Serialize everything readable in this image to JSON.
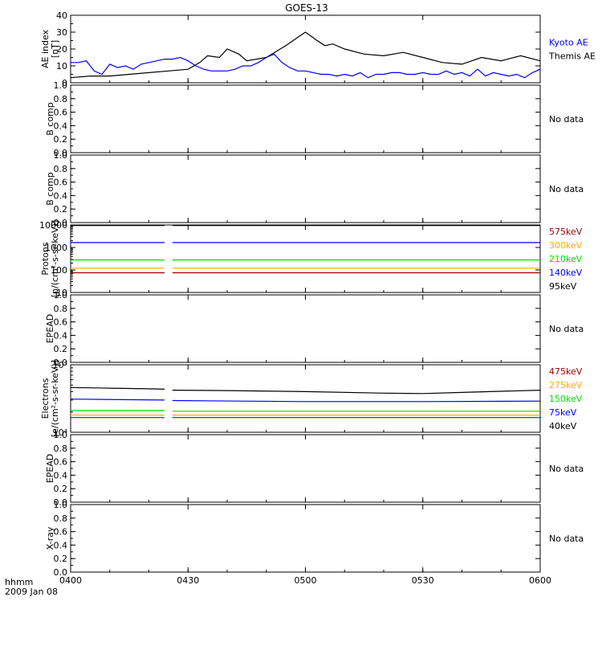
{
  "title": "GOES-13",
  "x_axis": {
    "ticks": [
      "0400",
      "0430",
      "0500",
      "0530",
      "0600"
    ],
    "label_line1": "hhmm",
    "label_line2": "2009 Jan 08"
  },
  "colors": {
    "black": "#000000",
    "blue": "#0000ff",
    "green": "#00dd00",
    "orange": "#ffaa00",
    "darkred": "#990000"
  },
  "chart_data": [
    {
      "id": "ae",
      "type": "line",
      "ylabel_line1": "AE index",
      "ylabel_line2": "[nT]",
      "ylim": [
        0,
        40
      ],
      "scale": "linear",
      "yticks": [
        "0",
        "10",
        "20",
        "30",
        "40"
      ],
      "legend": [
        {
          "label": "Kyoto AE",
          "color": "#0000ff"
        },
        {
          "label": "Themis AE",
          "color": "#000000"
        }
      ],
      "series": [
        {
          "name": "Themis AE",
          "color": "#000000",
          "x": [
            0,
            5,
            10,
            15,
            20,
            25,
            30,
            33,
            35,
            38,
            40,
            43,
            45,
            50,
            55,
            60,
            63,
            65,
            67,
            70,
            75,
            80,
            85,
            90,
            95,
            100,
            105,
            110,
            115,
            120
          ],
          "y": [
            3,
            4,
            4,
            5,
            6,
            7,
            8,
            12,
            16,
            15,
            20,
            17,
            13,
            15,
            22,
            30,
            25,
            22,
            23,
            20,
            17,
            16,
            18,
            15,
            12,
            11,
            15,
            13,
            16,
            13
          ]
        },
        {
          "name": "Kyoto AE",
          "color": "#0000ff",
          "x": [
            0,
            2,
            4,
            6,
            8,
            10,
            12,
            14,
            16,
            18,
            20,
            22,
            24,
            26,
            28,
            30,
            32,
            34,
            36,
            38,
            40,
            42,
            44,
            46,
            48,
            50,
            52,
            54,
            56,
            58,
            60,
            62,
            64,
            66,
            68,
            70,
            72,
            74,
            76,
            78,
            80,
            82,
            84,
            86,
            88,
            90,
            92,
            94,
            96,
            98,
            100,
            102,
            104,
            106,
            108,
            110,
            112,
            114,
            116,
            118,
            120
          ],
          "y": [
            12,
            12,
            13,
            7,
            5,
            11,
            9,
            10,
            8,
            11,
            12,
            13,
            14,
            14,
            15,
            13,
            10,
            8,
            7,
            7,
            7,
            8,
            10,
            10,
            12,
            15,
            17,
            12,
            9,
            7,
            7,
            6,
            5,
            5,
            4,
            5,
            4,
            6,
            3,
            5,
            5,
            6,
            6,
            5,
            5,
            6,
            5,
            5,
            7,
            5,
            6,
            4,
            8,
            4,
            6,
            5,
            4,
            5,
            3,
            6,
            8
          ]
        }
      ]
    },
    {
      "id": "bcomp1",
      "type": "line",
      "ylabel_line1": "B comp",
      "ylim": [
        0,
        1
      ],
      "scale": "linear",
      "yticks": [
        "0.0",
        "0.2",
        "0.4",
        "0.6",
        "0.8",
        "1.0"
      ],
      "no_data": "No data",
      "series": []
    },
    {
      "id": "bcomp2",
      "type": "line",
      "ylabel_line1": "B comp",
      "ylim": [
        0,
        1
      ],
      "scale": "linear",
      "yticks": [
        "0.0",
        "0.2",
        "0.4",
        "0.6",
        "0.8",
        "1.0"
      ],
      "no_data": "No data",
      "series": []
    },
    {
      "id": "protons",
      "type": "line",
      "ylabel_line1": "Protons",
      "ylabel_line2": "[p/(cm²-s-sr-keV)]",
      "ylim": [
        10,
        10000
      ],
      "scale": "log",
      "yticks": [
        "10",
        "100",
        "1000",
        "10000"
      ],
      "ytick_values": [
        10,
        100,
        1000,
        10000
      ],
      "legend": [
        {
          "label": "575keV",
          "color": "#990000"
        },
        {
          "label": "300keV",
          "color": "#ffaa00"
        },
        {
          "label": "210keV",
          "color": "#00dd00"
        },
        {
          "label": "140keV",
          "color": "#0000ff"
        },
        {
          "label": "95keV",
          "color": "#000000"
        }
      ],
      "gap": [
        24,
        26
      ],
      "series": [
        {
          "name": "95keV",
          "color": "#000000",
          "x": [
            0,
            24,
            26,
            120
          ],
          "y": [
            9500,
            9500,
            9500,
            9500
          ]
        },
        {
          "name": "140keV",
          "color": "#0000ff",
          "x": [
            0,
            24,
            26,
            120
          ],
          "y": [
            1650,
            1650,
            1650,
            1650
          ]
        },
        {
          "name": "210keV",
          "color": "#00dd00",
          "x": [
            0,
            24,
            26,
            120
          ],
          "y": [
            280,
            280,
            280,
            280
          ]
        },
        {
          "name": "300keV",
          "color": "#ffaa00",
          "x": [
            0,
            24,
            26,
            120
          ],
          "y": [
            120,
            120,
            120,
            120
          ]
        },
        {
          "name": "575keV",
          "color": "#990000",
          "x": [
            0,
            24,
            26,
            120
          ],
          "y": [
            75,
            75,
            75,
            75
          ]
        }
      ]
    },
    {
      "id": "epead1",
      "type": "line",
      "ylabel_line1": "EPEAD",
      "ylim": [
        0,
        1
      ],
      "scale": "linear",
      "yticks": [
        "0.0",
        "0.2",
        "0.4",
        "0.6",
        "0.8",
        "1.0"
      ],
      "no_data": "No data",
      "series": []
    },
    {
      "id": "electrons",
      "type": "line",
      "ylabel_line1": "Electrons",
      "ylabel_line2": "[e/(cm²-s-sr-keV)]",
      "ylim": [
        10000,
        100000
      ],
      "scale": "log",
      "yticks": [
        "10⁴",
        "10⁵"
      ],
      "ytick_values": [
        10000,
        100000
      ],
      "legend": [
        {
          "label": "475keV",
          "color": "#990000"
        },
        {
          "label": "275keV",
          "color": "#ffaa00"
        },
        {
          "label": "150keV",
          "color": "#00dd00"
        },
        {
          "label": "75keV",
          "color": "#0000ff"
        },
        {
          "label": "40keV",
          "color": "#000000"
        }
      ],
      "gap": [
        24,
        26
      ],
      "series": [
        {
          "name": "40keV",
          "color": "#000000",
          "x": [
            0,
            10,
            20,
            24,
            26,
            40,
            60,
            80,
            90,
            100,
            120
          ],
          "y": [
            46000,
            45000,
            44000,
            43500,
            42000,
            41500,
            40000,
            38000,
            37500,
            39000,
            42000
          ]
        },
        {
          "name": "75keV",
          "color": "#0000ff",
          "x": [
            0,
            24,
            26,
            60,
            90,
            120
          ],
          "y": [
            31000,
            30000,
            29500,
            28500,
            28500,
            29000
          ]
        },
        {
          "name": "150keV",
          "color": "#00dd00",
          "x": [
            0,
            24,
            26,
            60,
            120
          ],
          "y": [
            21000,
            21000,
            20500,
            20500,
            20500
          ]
        },
        {
          "name": "275keV",
          "color": "#ffaa00",
          "x": [
            0,
            24,
            26,
            60,
            120
          ],
          "y": [
            18000,
            18000,
            18000,
            18000,
            18000
          ]
        },
        {
          "name": "475keV",
          "color": "#990000",
          "x": [
            0,
            24,
            26,
            60,
            120
          ],
          "y": [
            16500,
            16500,
            16500,
            16500,
            16500
          ]
        }
      ]
    },
    {
      "id": "epead2",
      "type": "line",
      "ylabel_line1": "EPEAD",
      "ylim": [
        0,
        1
      ],
      "scale": "linear",
      "yticks": [
        "0.0",
        "0.2",
        "0.4",
        "0.6",
        "0.8",
        "1.0"
      ],
      "no_data": "No data",
      "series": []
    },
    {
      "id": "xray",
      "type": "line",
      "ylabel_line1": "X-ray",
      "ylim": [
        0,
        1
      ],
      "scale": "linear",
      "yticks": [
        "0.0",
        "0.2",
        "0.4",
        "0.6",
        "0.8",
        "1.0"
      ],
      "no_data": "No data",
      "series": []
    }
  ]
}
